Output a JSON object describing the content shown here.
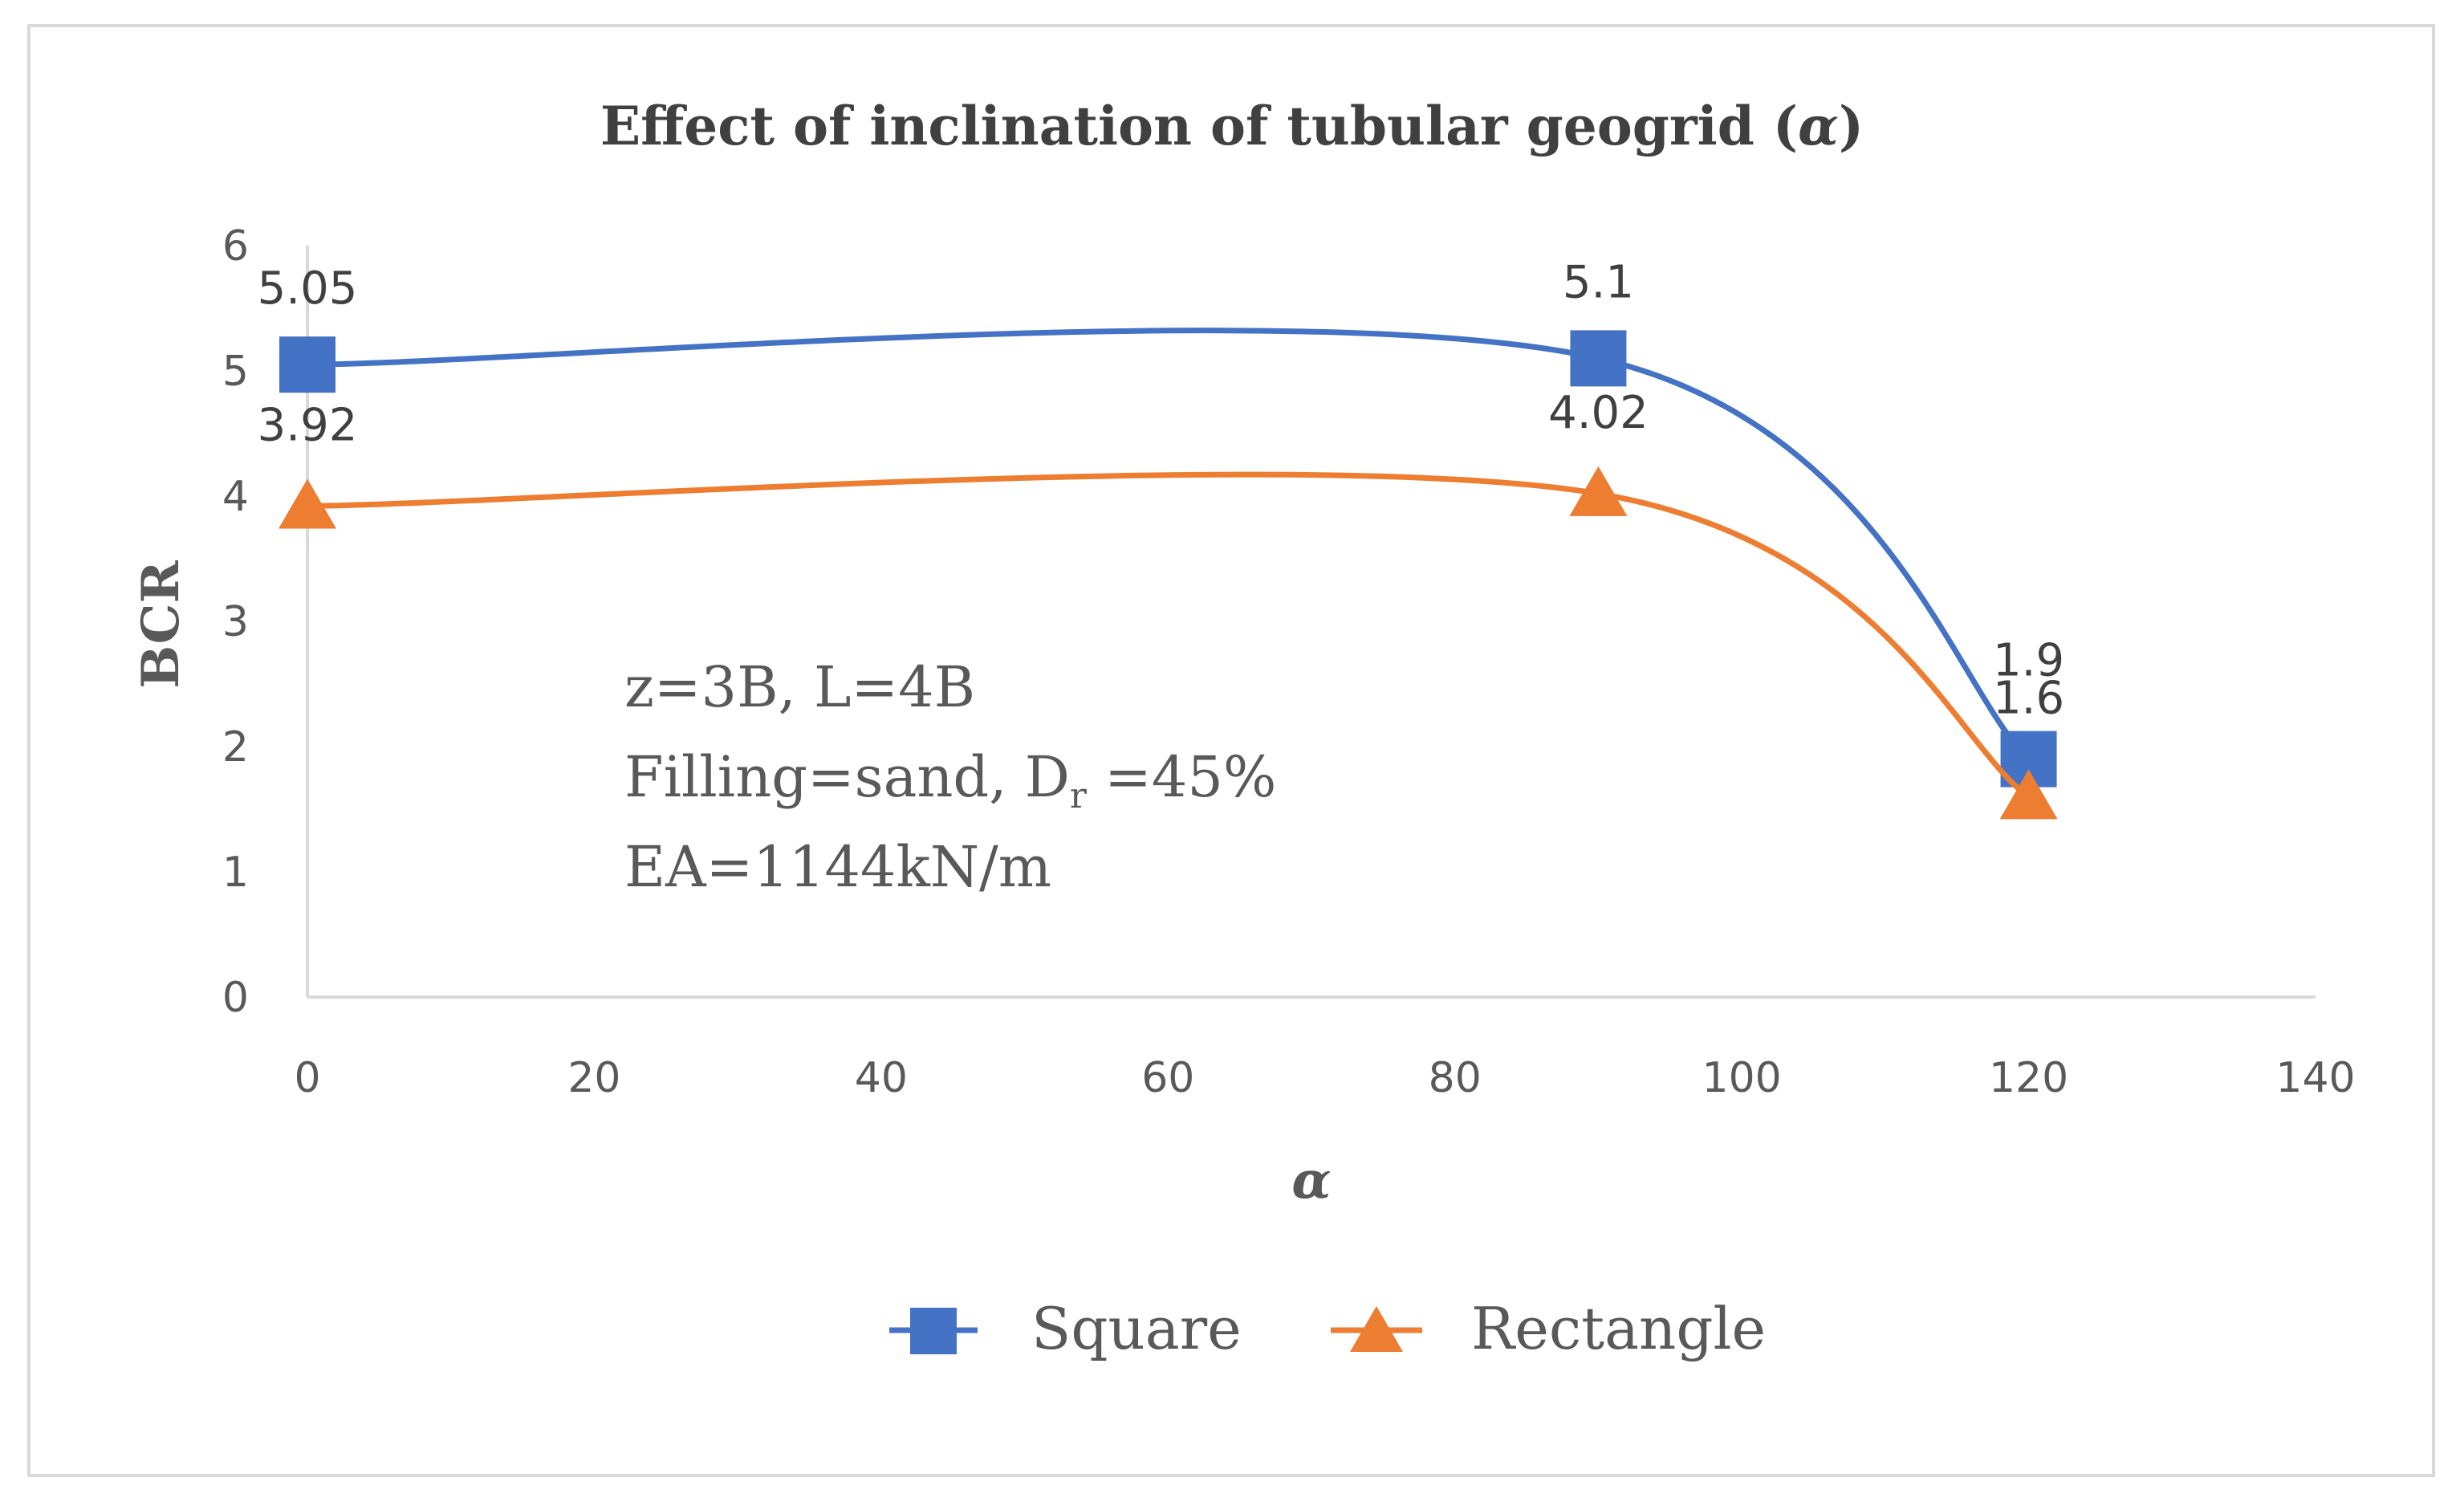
{
  "chart_data": {
    "type": "line",
    "title_prefix": "Effect of inclination of tubular geogrid (",
    "title_symbol": "α",
    "title_suffix": ")",
    "xlabel": "α",
    "ylabel": "BCR",
    "xlim": [
      0,
      140
    ],
    "ylim": [
      0,
      6
    ],
    "x_ticks": [
      "0",
      "20",
      "40",
      "60",
      "80",
      "100",
      "120",
      "140"
    ],
    "y_ticks": [
      "0",
      "1",
      "2",
      "3",
      "4",
      "5",
      "6"
    ],
    "x": [
      0,
      90,
      120
    ],
    "series": [
      {
        "name": "Square",
        "marker": "square",
        "color": "#4472C4",
        "values": [
          5.05,
          5.1,
          1.9
        ],
        "labels": [
          "5.05",
          "5.1",
          "1.9"
        ]
      },
      {
        "name": "Rectangle",
        "marker": "triangle",
        "color": "#ED7D31",
        "values": [
          3.92,
          4.02,
          1.6
        ],
        "labels": [
          "3.92",
          "4.02",
          "1.6"
        ]
      }
    ],
    "annotations": {
      "line1": "z=3B, L=4B",
      "line2_prefix": "Filling=sand, D",
      "line2_sub": "r",
      "line2_suffix": " =45%",
      "line3": "EA=1144kN/m"
    },
    "legend_position": "bottom"
  }
}
